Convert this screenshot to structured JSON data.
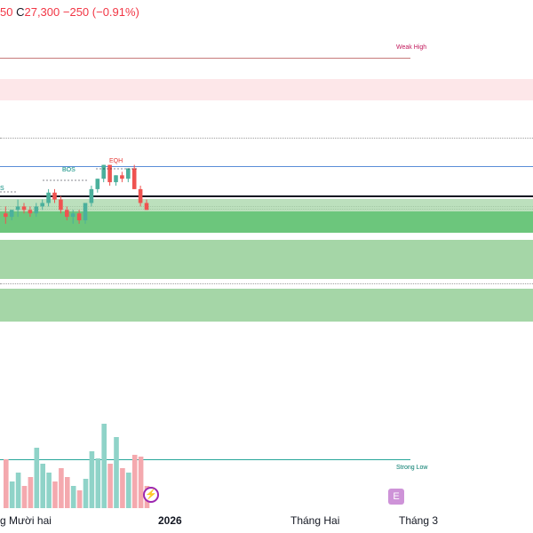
{
  "ohlc": {
    "open_tail": "50",
    "close_label": "C",
    "close_value": "27,300",
    "change": "−250 (−0.91%)"
  },
  "labels": {
    "weak_high": "Weak High",
    "strong_low": "Strong Low",
    "bos": "BOS",
    "eqh": "EQH",
    "bos_left": "S"
  },
  "time_axis": {
    "m1": "g Mười hai",
    "m2": "2026",
    "m3": "Tháng Hai",
    "m4": "Tháng 3"
  },
  "icons": {
    "dividend": "lightning-icon",
    "earnings": "earnings-e-icon",
    "earnings_glyph": "E",
    "lightning_glyph": "⚡"
  },
  "colors": {
    "up": "#4bb09c",
    "down": "#ef5350",
    "vol_up": "#8fd3c8",
    "vol_down": "#f4a9ae"
  },
  "chart_data": {
    "type": "candlestick",
    "candles": [
      {
        "o": 2,
        "h": 4,
        "l": -1,
        "c": 1
      },
      {
        "o": 1,
        "h": 3,
        "l": 0,
        "c": 3
      },
      {
        "o": 3,
        "h": 6,
        "l": 1,
        "c": 4
      },
      {
        "o": 4,
        "h": 5,
        "l": 2,
        "c": 3
      },
      {
        "o": 3,
        "h": 4,
        "l": 1,
        "c": 2
      },
      {
        "o": 2,
        "h": 5,
        "l": 1,
        "c": 4
      },
      {
        "o": 4,
        "h": 6,
        "l": 3,
        "c": 5
      },
      {
        "o": 5,
        "h": 9,
        "l": 4,
        "c": 8
      },
      {
        "o": 8,
        "h": 9,
        "l": 5,
        "c": 6
      },
      {
        "o": 6,
        "h": 7,
        "l": 2,
        "c": 3
      },
      {
        "o": 3,
        "h": 4,
        "l": 0,
        "c": 1
      },
      {
        "o": 1,
        "h": 3,
        "l": -1,
        "c": 2
      },
      {
        "o": 2,
        "h": 3,
        "l": -1,
        "c": 0
      },
      {
        "o": 0,
        "h": 5,
        "l": -1,
        "c": 5
      },
      {
        "o": 5,
        "h": 10,
        "l": 4,
        "c": 9
      },
      {
        "o": 9,
        "h": 12,
        "l": 8,
        "c": 12
      },
      {
        "o": 12,
        "h": 16,
        "l": 11,
        "c": 16
      },
      {
        "o": 16,
        "h": 16,
        "l": 10,
        "c": 11
      },
      {
        "o": 11,
        "h": 13,
        "l": 10,
        "c": 13
      },
      {
        "o": 13,
        "h": 14,
        "l": 11,
        "c": 12
      },
      {
        "o": 12,
        "h": 15,
        "l": 11,
        "c": 15
      },
      {
        "o": 15,
        "h": 16,
        "l": 9,
        "c": 9
      },
      {
        "o": 9,
        "h": 10,
        "l": 4,
        "c": 5
      },
      {
        "o": 5,
        "h": 6,
        "l": 3,
        "c": 3
      }
    ],
    "volume": [
      55,
      30,
      40,
      25,
      35,
      68,
      50,
      40,
      30,
      45,
      35,
      25,
      20,
      33,
      64,
      56,
      95,
      50,
      80,
      45,
      40,
      60,
      58,
      25
    ],
    "grid": false
  }
}
